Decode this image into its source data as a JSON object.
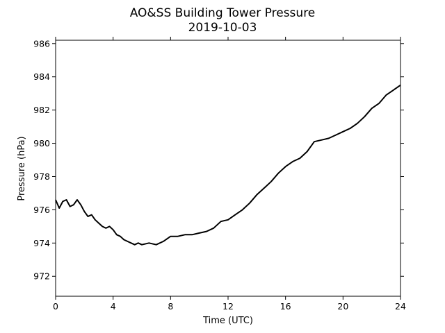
{
  "chart_data": {
    "type": "line",
    "title": "AO&SS Building Tower Pressure",
    "subtitle": "2019-10-03",
    "xlabel": "Time (UTC)",
    "ylabel": "Pressure (hPa)",
    "xlim": [
      0,
      24
    ],
    "ylim": [
      970.8,
      986.2
    ],
    "x_ticks": [
      0,
      4,
      8,
      12,
      16,
      20,
      24
    ],
    "y_ticks": [
      972,
      974,
      976,
      978,
      980,
      982,
      984,
      986
    ],
    "x_tick_labels": [
      "0",
      "4",
      "8",
      "12",
      "16",
      "20",
      "24"
    ],
    "y_tick_labels": [
      "972",
      "974",
      "976",
      "978",
      "980",
      "982",
      "984",
      "986"
    ],
    "grid": false,
    "line_color": "#000000",
    "series": [
      {
        "x": [
          0,
          0.25,
          0.5,
          0.75,
          1,
          1.25,
          1.5,
          1.75,
          2,
          2.25,
          2.5,
          2.75,
          3,
          3.25,
          3.5,
          3.75,
          4,
          4.25,
          4.5,
          4.75,
          5,
          5.25,
          5.5,
          5.75,
          6,
          6.5,
          7,
          7.5,
          8,
          8.5,
          9,
          9.5,
          10,
          10.5,
          11,
          11.5,
          12,
          12.5,
          13,
          13.5,
          14,
          14.5,
          15,
          15.5,
          16,
          16.5,
          17,
          17.5,
          18,
          18.5,
          19,
          19.5,
          20,
          20.5,
          21,
          21.5,
          22,
          22.5,
          23,
          23.5,
          24
        ],
        "y": [
          976.6,
          976.1,
          976.5,
          976.6,
          976.2,
          976.3,
          976.6,
          976.3,
          975.9,
          975.6,
          975.7,
          975.4,
          975.2,
          975.0,
          974.9,
          975.0,
          974.8,
          974.5,
          974.4,
          974.2,
          974.1,
          974.0,
          973.9,
          974.0,
          973.9,
          974.0,
          973.9,
          974.1,
          974.4,
          974.4,
          974.5,
          974.5,
          974.6,
          974.7,
          974.9,
          975.3,
          975.4,
          975.7,
          976.0,
          976.4,
          976.9,
          977.3,
          977.7,
          978.2,
          978.6,
          978.9,
          979.1,
          979.5,
          980.1,
          980.2,
          980.3,
          980.5,
          980.7,
          980.9,
          981.2,
          981.6,
          982.1,
          982.4,
          982.9,
          983.2,
          983.5
        ]
      }
    ]
  }
}
